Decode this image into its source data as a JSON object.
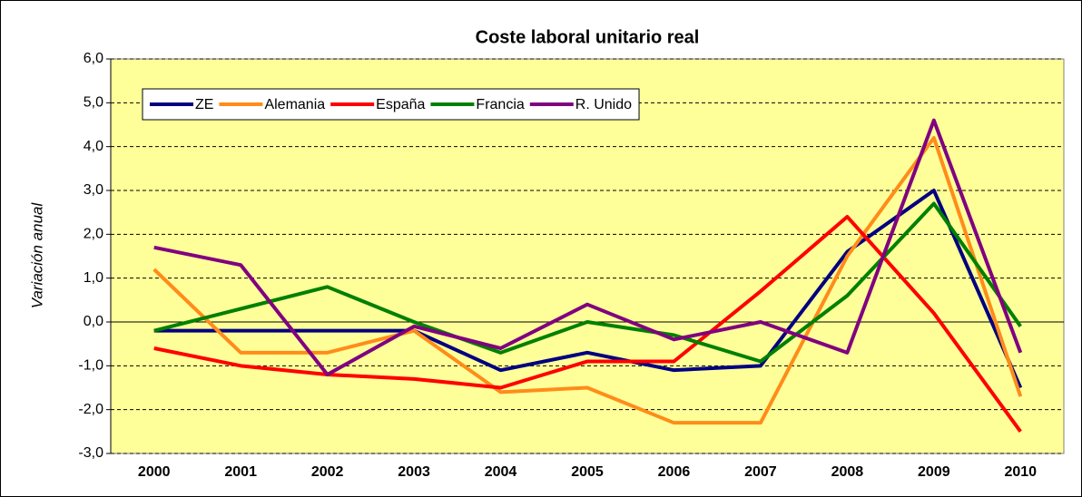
{
  "chart_data": {
    "type": "line",
    "title": "Coste laboral unitario real",
    "y_label": "Variación anual",
    "categories": [
      "2000",
      "2001",
      "2002",
      "2003",
      "2004",
      "2005",
      "2006",
      "2007",
      "2008",
      "2009",
      "2010"
    ],
    "series": [
      {
        "name": "ZE",
        "color": "#000080",
        "values": [
          -0.2,
          -0.2,
          -0.2,
          -0.2,
          -1.1,
          -0.7,
          -1.1,
          -1.0,
          1.6,
          3.0,
          -1.5
        ]
      },
      {
        "name": "Alemania",
        "color": "#ff8c1a",
        "values": [
          1.2,
          -0.7,
          -0.7,
          -0.2,
          -1.6,
          -1.5,
          -2.3,
          -2.3,
          1.5,
          4.2,
          -1.7
        ]
      },
      {
        "name": "España",
        "color": "#ff0000",
        "values": [
          -0.6,
          -1.0,
          -1.2,
          -1.3,
          -1.5,
          -0.9,
          -0.9,
          0.7,
          2.4,
          0.2,
          -2.5
        ]
      },
      {
        "name": "Francia",
        "color": "#008000",
        "values": [
          -0.2,
          0.3,
          0.8,
          0.0,
          -0.7,
          0.0,
          -0.3,
          -0.9,
          0.6,
          2.7,
          -0.1
        ]
      },
      {
        "name": "R. Unido",
        "color": "#800080",
        "values": [
          1.7,
          1.3,
          -1.2,
          -0.1,
          -0.6,
          0.4,
          -0.4,
          0.0,
          -0.7,
          4.6,
          -0.7
        ]
      }
    ],
    "ylim": [
      -3,
      6
    ],
    "yticks": [
      {
        "value": -3,
        "label": "-3,0"
      },
      {
        "value": -2,
        "label": "-2,0"
      },
      {
        "value": -1,
        "label": "-1,0"
      },
      {
        "value": 0,
        "label": "0,0"
      },
      {
        "value": 1,
        "label": "1,0"
      },
      {
        "value": 2,
        "label": "2,0"
      },
      {
        "value": 3,
        "label": "3,0"
      },
      {
        "value": 4,
        "label": "4,0"
      },
      {
        "value": 5,
        "label": "5,0"
      },
      {
        "value": 6,
        "label": "6,0"
      }
    ],
    "grid": true,
    "legend": "upper left",
    "plot_background": "#ffff99"
  }
}
